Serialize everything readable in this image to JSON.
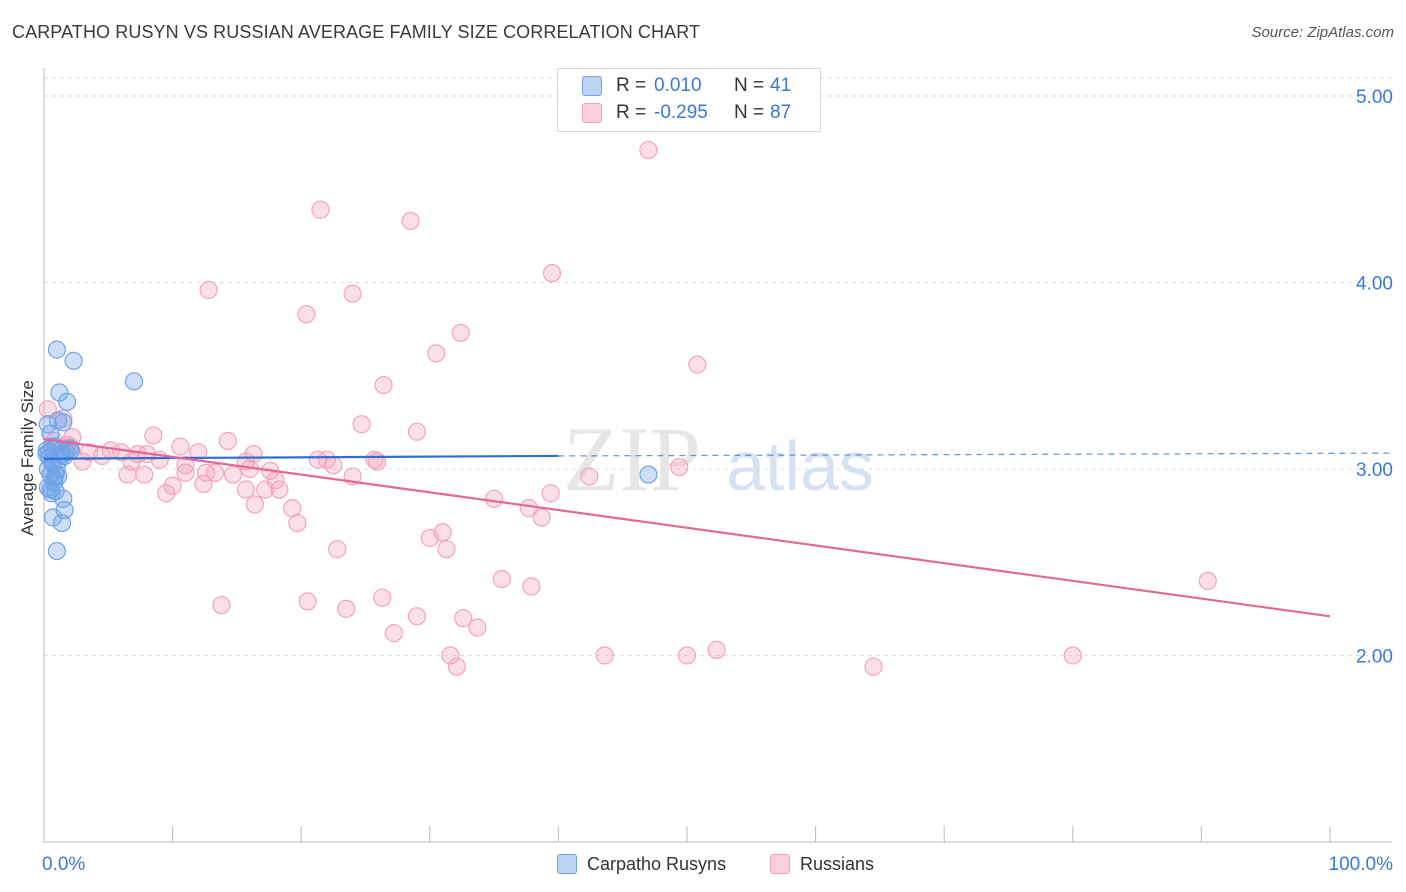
{
  "title": "CARPATHO RUSYN VS RUSSIAN AVERAGE FAMILY SIZE CORRELATION CHART",
  "source": "Source: ZipAtlas.com",
  "watermark": {
    "zip": "ZIP",
    "atlas": "atlas"
  },
  "legend": {
    "rows": [
      {
        "r_label": "R =",
        "r_value": "0.010",
        "n_label": "N =",
        "n_value": "41"
      },
      {
        "r_label": "R =",
        "r_value": "-0.295",
        "n_label": "N =",
        "n_value": "87"
      }
    ],
    "series": [
      "Carpatho Rusyns",
      "Russians"
    ]
  },
  "chart_data": {
    "type": "scatter",
    "xlabel": "",
    "ylabel": "Average Family Size",
    "xlim": [
      0,
      100
    ],
    "ylim": [
      1.0,
      5.15
    ],
    "x_tick_labels": [
      {
        "x": 0,
        "label": "0.0%"
      },
      {
        "x": 100,
        "label": "100.0%"
      }
    ],
    "y_ticks": [
      {
        "y": 2.0,
        "label": "2.00"
      },
      {
        "y": 3.0,
        "label": "3.00"
      },
      {
        "y": 4.0,
        "label": "4.00"
      },
      {
        "y": 5.0,
        "label": "5.00"
      }
    ],
    "grid": true,
    "colors": {
      "carpatho": "#6fa3e8",
      "carpatho_line": "#2f6fd1",
      "russians": "#f3a3bb",
      "russians_line": "#e5679a",
      "tick_text": "#3b78d8"
    },
    "series": [
      {
        "name": "Carpatho Rusyns",
        "points": [
          [
            0.3,
            3.24
          ],
          [
            0.5,
            3.19
          ],
          [
            0.2,
            3.1
          ],
          [
            0.4,
            3.06
          ],
          [
            0.6,
            3.04
          ],
          [
            0.3,
            3.0
          ],
          [
            0.5,
            2.97
          ],
          [
            0.8,
            2.95
          ],
          [
            0.3,
            2.9
          ],
          [
            0.9,
            2.88
          ],
          [
            0.6,
            2.87
          ],
          [
            0.7,
            2.74
          ],
          [
            1.0,
            2.56
          ],
          [
            1.0,
            3.64
          ],
          [
            2.3,
            3.58
          ],
          [
            1.2,
            3.41
          ],
          [
            1.8,
            3.36
          ],
          [
            1.5,
            3.25
          ],
          [
            1.1,
            3.26
          ],
          [
            0.9,
            3.12
          ],
          [
            1.3,
            3.1
          ],
          [
            1.7,
            3.09
          ],
          [
            2.0,
            3.11
          ],
          [
            1.4,
            3.08
          ],
          [
            1.6,
            3.07
          ],
          [
            1.2,
            3.05
          ],
          [
            1.1,
            2.96
          ],
          [
            0.8,
            2.93
          ],
          [
            1.5,
            2.84
          ],
          [
            1.6,
            2.78
          ],
          [
            1.4,
            2.71
          ],
          [
            2.1,
            3.1
          ],
          [
            0.4,
            3.09
          ],
          [
            0.6,
            3.12
          ],
          [
            0.7,
            3.03
          ],
          [
            1.0,
            3.0
          ],
          [
            0.9,
            2.97
          ],
          [
            0.5,
            2.89
          ],
          [
            7.0,
            3.47
          ],
          [
            47.0,
            2.97
          ],
          [
            0.2,
            3.08
          ]
        ],
        "trend": {
          "x": [
            0,
            40
          ],
          "y": [
            3.055,
            3.07
          ],
          "dashed_to": [
            100,
            3.085
          ]
        }
      },
      {
        "name": "Russians",
        "points": [
          [
            47.0,
            4.71
          ],
          [
            21.5,
            4.39
          ],
          [
            28.5,
            4.33
          ],
          [
            39.5,
            4.05
          ],
          [
            12.8,
            3.96
          ],
          [
            24.0,
            3.94
          ],
          [
            20.4,
            3.83
          ],
          [
            32.4,
            3.73
          ],
          [
            30.5,
            3.62
          ],
          [
            50.8,
            3.56
          ],
          [
            26.4,
            3.45
          ],
          [
            24.7,
            3.24
          ],
          [
            29.0,
            3.2
          ],
          [
            0.3,
            3.32
          ],
          [
            1.5,
            3.27
          ],
          [
            2.2,
            3.17
          ],
          [
            8.5,
            3.18
          ],
          [
            14.3,
            3.15
          ],
          [
            10.6,
            3.12
          ],
          [
            12.0,
            3.09
          ],
          [
            16.3,
            3.08
          ],
          [
            2.0,
            3.12
          ],
          [
            3.5,
            3.09
          ],
          [
            5.2,
            3.1
          ],
          [
            6.0,
            3.09
          ],
          [
            7.3,
            3.08
          ],
          [
            8.0,
            3.08
          ],
          [
            3.0,
            3.04
          ],
          [
            4.5,
            3.07
          ],
          [
            6.8,
            3.04
          ],
          [
            9.0,
            3.05
          ],
          [
            11.0,
            3.02
          ],
          [
            15.7,
            3.04
          ],
          [
            21.3,
            3.05
          ],
          [
            22.0,
            3.05
          ],
          [
            22.5,
            3.02
          ],
          [
            25.7,
            3.05
          ],
          [
            16.0,
            3.0
          ],
          [
            12.6,
            2.98
          ],
          [
            11.0,
            2.98
          ],
          [
            17.6,
            2.99
          ],
          [
            13.3,
            2.98
          ],
          [
            6.5,
            2.97
          ],
          [
            7.8,
            2.97
          ],
          [
            14.7,
            2.97
          ],
          [
            24.0,
            2.96
          ],
          [
            42.4,
            2.96
          ],
          [
            10.0,
            2.91
          ],
          [
            12.4,
            2.92
          ],
          [
            15.7,
            2.89
          ],
          [
            17.2,
            2.89
          ],
          [
            18.3,
            2.89
          ],
          [
            18.0,
            2.94
          ],
          [
            9.5,
            2.87
          ],
          [
            39.4,
            2.87
          ],
          [
            35.0,
            2.84
          ],
          [
            16.4,
            2.81
          ],
          [
            19.3,
            2.79
          ],
          [
            37.7,
            2.79
          ],
          [
            38.7,
            2.74
          ],
          [
            19.7,
            2.71
          ],
          [
            31.0,
            2.66
          ],
          [
            30.0,
            2.63
          ],
          [
            22.8,
            2.57
          ],
          [
            31.3,
            2.57
          ],
          [
            35.6,
            2.41
          ],
          [
            37.9,
            2.37
          ],
          [
            90.5,
            2.4
          ],
          [
            13.8,
            2.27
          ],
          [
            20.5,
            2.29
          ],
          [
            23.5,
            2.25
          ],
          [
            26.3,
            2.31
          ],
          [
            29.0,
            2.21
          ],
          [
            32.6,
            2.2
          ],
          [
            33.7,
            2.15
          ],
          [
            27.2,
            2.12
          ],
          [
            31.6,
            2.0
          ],
          [
            32.1,
            1.94
          ],
          [
            43.6,
            2.0
          ],
          [
            50.0,
            2.0
          ],
          [
            52.3,
            2.03
          ],
          [
            64.5,
            1.94
          ],
          [
            80.0,
            2.0
          ],
          [
            25.9,
            3.04
          ],
          [
            49.4,
            3.01
          ],
          [
            0.8,
            3.15
          ],
          [
            1.8,
            3.13
          ]
        ],
        "trend": {
          "x": [
            0,
            100
          ],
          "y": [
            3.16,
            2.21
          ]
        }
      }
    ]
  }
}
